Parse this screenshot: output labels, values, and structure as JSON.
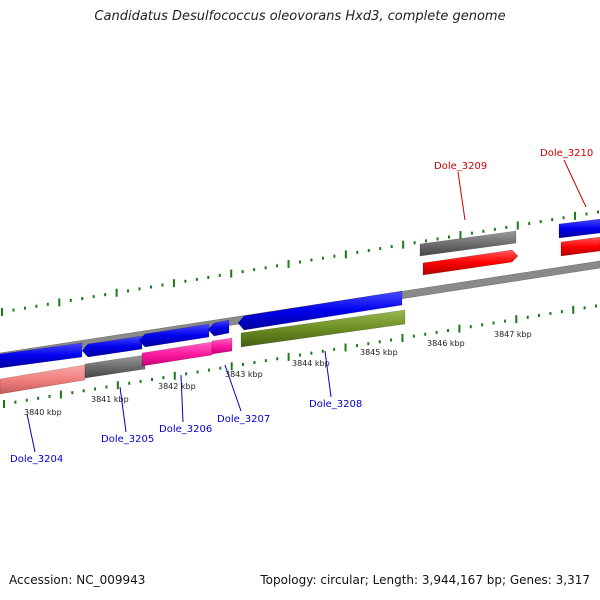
{
  "title": "Candidatus Desulfococcus oleovorans Hxd3, complete genome",
  "accession": "Accession: NC_009943",
  "topology": "Topology: circular; Length: 3,944,167 bp; Genes: 3,317",
  "kbp_labels": [
    "3840 kbp",
    "3841 kbp",
    "3842 kbp",
    "3843 kbp",
    "3844 kbp",
    "3845 kbp",
    "3846 kbp",
    "3847 kbp"
  ],
  "genes": [
    {
      "name": "Dole_3204",
      "color": "#0000cc"
    },
    {
      "name": "Dole_3205",
      "color": "#0000cc"
    },
    {
      "name": "Dole_3206",
      "color": "#0000cc"
    },
    {
      "name": "Dole_3207",
      "color": "#0000cc"
    },
    {
      "name": "Dole_3208",
      "color": "#0000cc"
    },
    {
      "name": "Dole_3209",
      "color": "#cc0000"
    },
    {
      "name": "Dole_3210",
      "color": "#cc0000"
    }
  ],
  "colors": {
    "blue": "#0000ee",
    "grey": "#6e6e6e",
    "magenta": "#ff1aa0",
    "green": "#6b8e23",
    "red": "#ff0000",
    "salmon": "#f08080",
    "tick": "#1a7a1a",
    "backbone": "#808080"
  }
}
